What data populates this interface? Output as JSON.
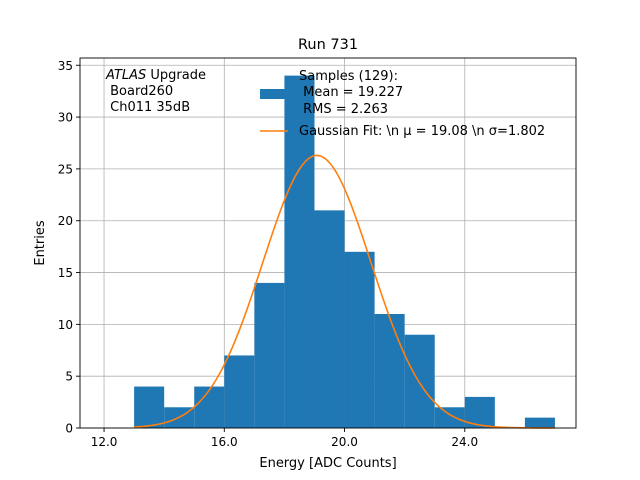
{
  "chart_data": {
    "type": "bar",
    "title": "Run 731",
    "xlabel": "Energy [ADC Counts]",
    "ylabel": "Entries",
    "xlim": [
      11.2,
      27.7
    ],
    "ylim": [
      0,
      35.7
    ],
    "grid": true,
    "x_ticks": [
      12.0,
      16.0,
      20.0,
      24.0
    ],
    "x_tick_labels": [
      "12.0",
      "16.0",
      "20.0",
      "24.0"
    ],
    "y_ticks": [
      0,
      5,
      10,
      15,
      20,
      25,
      30,
      35
    ],
    "y_tick_labels": [
      "0",
      "5",
      "10",
      "15",
      "20",
      "25",
      "30",
      "35"
    ],
    "histogram": {
      "name": "Samples",
      "bin_edges": [
        13,
        14,
        15,
        16,
        17,
        18,
        19,
        20,
        21,
        22,
        23,
        24,
        25,
        26,
        27
      ],
      "counts": [
        4,
        2,
        4,
        7,
        14,
        34,
        21,
        17,
        11,
        9,
        2,
        3,
        0,
        1
      ],
      "color": "#1f77b4"
    },
    "gaussian_fit": {
      "mu": 19.08,
      "sigma": 1.802,
      "amplitude": 26.3,
      "x_range": [
        13,
        27
      ],
      "color": "#ff7f0e"
    },
    "legend": {
      "placement": "top-right",
      "samples_label_line1": "Samples (129):",
      "samples_label_line2": " Mean = 19.227",
      "samples_label_line3": " RMS = 2.263",
      "fit_label": "Gaussian Fit: \\n μ = 19.08 \\n σ=1.802"
    },
    "annotation": {
      "line1_italic": "ATLAS",
      "line1_rest": " Upgrade",
      "line2": " Board260",
      "line3": " Ch011 35dB"
    }
  }
}
